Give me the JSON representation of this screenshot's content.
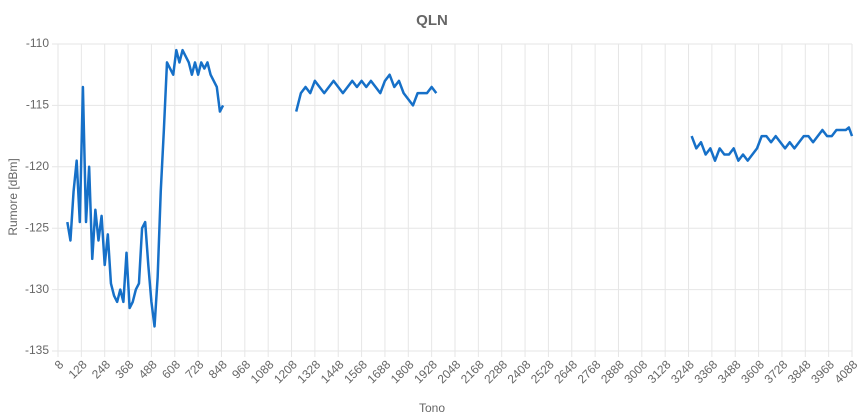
{
  "chart_data": {
    "type": "line",
    "title": "QLN",
    "x_label": "Tono",
    "y_label": "Rumore [dBm]",
    "color": "#1670c8",
    "grid": true,
    "xlim": [
      8,
      4088
    ],
    "xticks": [
      8,
      128,
      248,
      368,
      488,
      608,
      728,
      848,
      968,
      1088,
      1208,
      1328,
      1448,
      1568,
      1688,
      1808,
      1928,
      2048,
      2168,
      2288,
      2408,
      2528,
      2648,
      2768,
      2888,
      3008,
      3128,
      3248,
      3368,
      3488,
      3608,
      3728,
      3848,
      3968,
      4088
    ],
    "ylim": [
      -135,
      -110
    ],
    "yticks": [
      -135,
      -130,
      -125,
      -120,
      -115,
      -110
    ],
    "x": [
      56,
      72,
      88,
      104,
      120,
      136,
      152,
      168,
      184,
      200,
      216,
      232,
      248,
      264,
      280,
      296,
      312,
      328,
      344,
      360,
      376,
      392,
      408,
      424,
      440,
      456,
      472,
      488,
      504,
      520,
      536,
      552,
      568,
      584,
      600,
      616,
      632,
      648,
      664,
      680,
      696,
      712,
      728,
      744,
      760,
      776,
      792,
      808,
      824,
      840,
      856,
      1040,
      1232,
      1256,
      1280,
      1304,
      1328,
      1352,
      1376,
      1400,
      1424,
      1448,
      1472,
      1496,
      1520,
      1544,
      1568,
      1592,
      1616,
      1640,
      1664,
      1688,
      1712,
      1736,
      1760,
      1784,
      1808,
      1832,
      1856,
      1880,
      1904,
      1928,
      1952,
      2600,
      3264,
      3288,
      3312,
      3336,
      3360,
      3384,
      3408,
      3432,
      3456,
      3480,
      3504,
      3528,
      3552,
      3576,
      3600,
      3624,
      3648,
      3672,
      3696,
      3720,
      3744,
      3768,
      3792,
      3816,
      3840,
      3864,
      3888,
      3912,
      3936,
      3960,
      3984,
      4008,
      4032,
      4056,
      4072,
      4088
    ],
    "values": [
      -124.5,
      -126,
      -122,
      -119.5,
      -124.5,
      -113.5,
      -124.5,
      -120,
      -127.5,
      -123.5,
      -126,
      -124,
      -128,
      -125.5,
      -129.5,
      -130.5,
      -131,
      -130,
      -131,
      -127,
      -131.5,
      -131,
      -130,
      -129.5,
      -125,
      -124.5,
      -128,
      -131,
      -133,
      -129,
      -122,
      -117,
      -111.5,
      -112,
      -112.5,
      -110.5,
      -111.5,
      -110.5,
      -111,
      -111.5,
      -112.5,
      -111.5,
      -112.5,
      -111.5,
      -112,
      -111.5,
      -112.5,
      -113,
      -113.5,
      -115.5,
      -115,
      null,
      -115.5,
      -114,
      -113.5,
      -114,
      -113,
      -113.5,
      -114,
      -113.5,
      -113,
      -113.5,
      -114,
      -113.5,
      -113,
      -113.5,
      -113,
      -113.5,
      -113,
      -113.5,
      -114,
      -113,
      -112.5,
      -113.5,
      -113,
      -114,
      -114.5,
      -115,
      -114,
      -114,
      -114,
      -113.5,
      -114,
      null,
      -117.5,
      -118.5,
      -118,
      -119,
      -118.5,
      -119.5,
      -118.5,
      -119,
      -119,
      -118.5,
      -119.5,
      -119,
      -119.5,
      -119,
      -118.5,
      -117.5,
      -117.5,
      -118,
      -117.5,
      -118,
      -118.5,
      -118,
      -118.5,
      -118,
      -117.5,
      -117.5,
      -118,
      -117.5,
      -117,
      -117.5,
      -117.5,
      -117,
      -117,
      -117,
      -116.8,
      -117.5
    ]
  }
}
